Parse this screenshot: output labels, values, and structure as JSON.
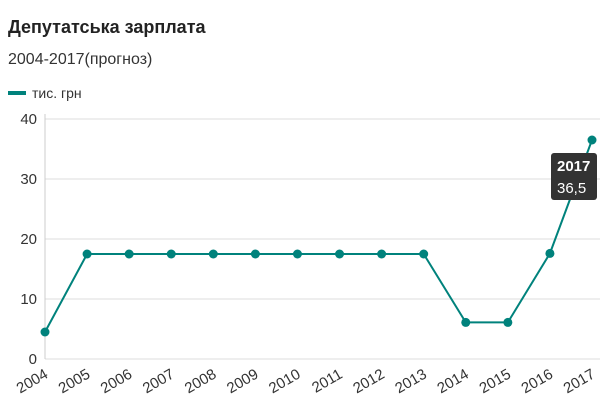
{
  "chart_data": {
    "type": "line",
    "title": "Депутатська зарплата",
    "subtitle": "2004-2017(прогноз)",
    "categories": [
      "2004",
      "2005",
      "2006",
      "2007",
      "2008",
      "2009",
      "2010",
      "2011",
      "2012",
      "2013",
      "2014",
      "2015",
      "2016",
      "2017"
    ],
    "series": [
      {
        "name": "тис. грн",
        "color": "#00827c",
        "values": [
          4.5,
          17.5,
          17.5,
          17.5,
          17.5,
          17.5,
          17.5,
          17.5,
          17.5,
          17.5,
          6.1,
          6.1,
          17.6,
          36.5
        ],
        "value_labels": [
          null,
          null,
          null,
          null,
          null,
          null,
          null,
          null,
          null,
          null,
          null,
          null,
          null,
          "36,5"
        ]
      }
    ],
    "ylim": [
      0,
      40
    ],
    "yticks": [
      0,
      10,
      20,
      30,
      40
    ],
    "grid": true,
    "legend": "top-left"
  }
}
